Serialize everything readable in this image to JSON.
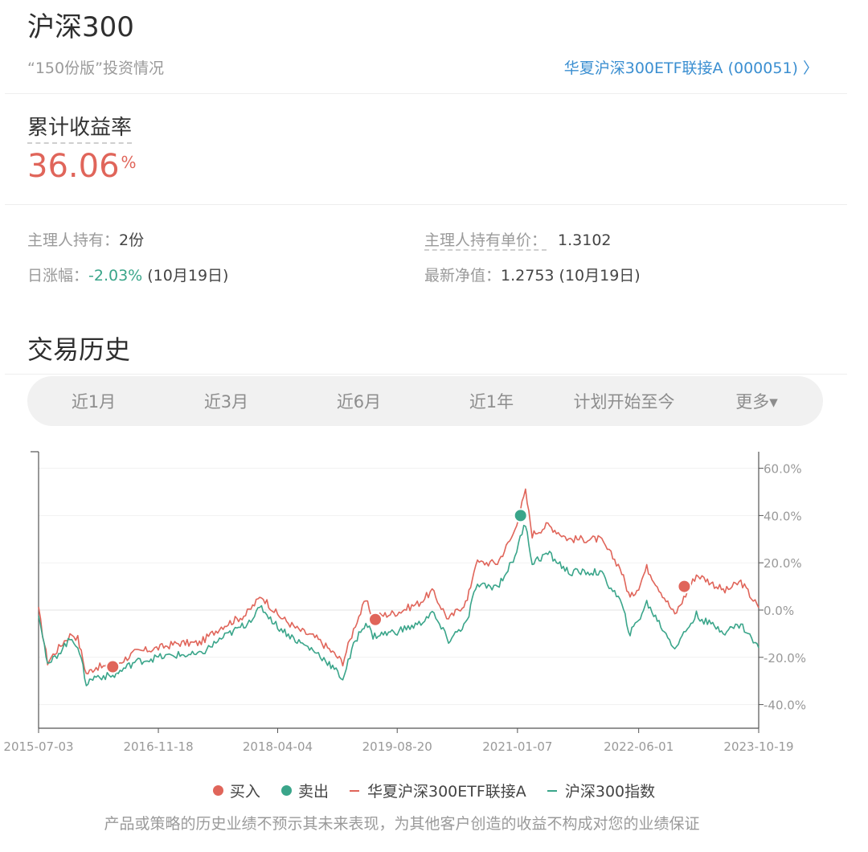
{
  "header": {
    "title": "沪深300",
    "subtitle": "“150份版”投资情况",
    "fund_link": "华夏沪深300ETF联接A (000051) 〉"
  },
  "summary": {
    "label": "累计收益率",
    "value": "36.06",
    "unit": "%"
  },
  "info": {
    "holdings_label": "主理人持有：",
    "holdings_value": "2份",
    "unit_price_label": "主理人持有单价：",
    "unit_price_value": "1.3102",
    "daily_change_label": "日涨幅：",
    "daily_change_value": "-2.03%",
    "daily_change_date": " (10月19日)",
    "nav_label": "最新净值：",
    "nav_value": "1.2753 (10月19日)"
  },
  "history": {
    "title": "交易历史",
    "tabs": [
      "近1月",
      "近3月",
      "近6月",
      "近1年",
      "计划开始至今",
      "更多▾"
    ]
  },
  "colors": {
    "fund": "#e0655a",
    "index": "#3aa58a",
    "buy": "#e0655a",
    "sell": "#3aa58a"
  },
  "chart_data": {
    "type": "line",
    "x_ticks": [
      "2015-07-03",
      "2016-11-18",
      "2018-04-04",
      "2019-08-20",
      "2021-01-07",
      "2022-06-01",
      "2023-10-19"
    ],
    "y_ticks": [
      "60.0%",
      "40.0%",
      "20.0%",
      "0.0%",
      "-20.0%",
      "-40.0%"
    ],
    "ylim": [
      -50,
      67
    ],
    "y_side": "right",
    "grid": true,
    "legend_position": "bottom",
    "series": [
      {
        "name": "华夏沪深300ETF联接A",
        "color": "#e0655a",
        "points": [
          [
            "2015-07-03",
            0
          ],
          [
            "2015-07-20",
            -10
          ],
          [
            "2015-08-10",
            -22
          ],
          [
            "2015-09-10",
            -18
          ],
          [
            "2015-10-20",
            -13
          ],
          [
            "2015-11-20",
            -10
          ],
          [
            "2015-12-15",
            -12
          ],
          [
            "2016-01-20",
            -27
          ],
          [
            "2016-03-01",
            -24
          ],
          [
            "2016-05-10",
            -24
          ],
          [
            "2016-08-10",
            -18
          ],
          [
            "2016-11-18",
            -16
          ],
          [
            "2017-02-10",
            -14
          ],
          [
            "2017-05-10",
            -14
          ],
          [
            "2017-08-10",
            -7
          ],
          [
            "2017-11-20",
            -2
          ],
          [
            "2018-01-26",
            6
          ],
          [
            "2018-04-04",
            -2
          ],
          [
            "2018-06-25",
            -8
          ],
          [
            "2018-09-15",
            -12
          ],
          [
            "2018-10-31",
            -16
          ],
          [
            "2019-01-03",
            -22
          ],
          [
            "2019-02-25",
            -6
          ],
          [
            "2019-04-10",
            4
          ],
          [
            "2019-05-10",
            -3
          ],
          [
            "2019-08-20",
            -1
          ],
          [
            "2019-11-20",
            3
          ],
          [
            "2020-01-14",
            8
          ],
          [
            "2020-03-23",
            -4
          ],
          [
            "2020-06-10",
            4
          ],
          [
            "2020-07-15",
            20
          ],
          [
            "2020-10-15",
            20
          ],
          [
            "2020-12-20",
            32
          ],
          [
            "2021-02-10",
            50
          ],
          [
            "2021-03-10",
            32
          ],
          [
            "2021-05-15",
            36
          ],
          [
            "2021-08-10",
            30
          ],
          [
            "2021-12-20",
            30
          ],
          [
            "2022-03-15",
            18
          ],
          [
            "2022-04-26",
            5
          ],
          [
            "2022-06-01",
            10
          ],
          [
            "2022-07-05",
            18
          ],
          [
            "2022-10-31",
            -2
          ],
          [
            "2023-01-30",
            15
          ],
          [
            "2023-03-10",
            13
          ],
          [
            "2023-05-30",
            8
          ],
          [
            "2023-08-05",
            12
          ],
          [
            "2023-10-19",
            1
          ]
        ]
      },
      {
        "name": "沪深300指数",
        "color": "#3aa58a",
        "points": [
          [
            "2015-07-03",
            -1
          ],
          [
            "2015-07-20",
            -10
          ],
          [
            "2015-08-10",
            -24
          ],
          [
            "2015-09-10",
            -20
          ],
          [
            "2015-10-20",
            -15
          ],
          [
            "2015-11-20",
            -12
          ],
          [
            "2015-12-15",
            -15
          ],
          [
            "2016-01-20",
            -31
          ],
          [
            "2016-03-01",
            -28
          ],
          [
            "2016-05-10",
            -28
          ],
          [
            "2016-08-10",
            -22
          ],
          [
            "2016-11-18",
            -20
          ],
          [
            "2017-02-10",
            -19
          ],
          [
            "2017-05-10",
            -19
          ],
          [
            "2017-08-10",
            -12
          ],
          [
            "2017-11-20",
            -6
          ],
          [
            "2018-01-26",
            1
          ],
          [
            "2018-04-04",
            -7
          ],
          [
            "2018-06-25",
            -13
          ],
          [
            "2018-09-15",
            -18
          ],
          [
            "2018-10-31",
            -22
          ],
          [
            "2019-01-03",
            -29
          ],
          [
            "2019-02-25",
            -13
          ],
          [
            "2019-04-10",
            -5
          ],
          [
            "2019-05-10",
            -11
          ],
          [
            "2019-08-20",
            -9
          ],
          [
            "2019-11-20",
            -6
          ],
          [
            "2020-01-14",
            -1
          ],
          [
            "2020-03-23",
            -13
          ],
          [
            "2020-06-10",
            -5
          ],
          [
            "2020-07-15",
            10
          ],
          [
            "2020-10-15",
            10
          ],
          [
            "2020-12-20",
            21
          ],
          [
            "2021-02-10",
            37
          ],
          [
            "2021-03-10",
            20
          ],
          [
            "2021-05-15",
            24
          ],
          [
            "2021-08-10",
            16
          ],
          [
            "2021-12-20",
            16
          ],
          [
            "2022-03-15",
            4
          ],
          [
            "2022-04-26",
            -10
          ],
          [
            "2022-06-01",
            -4
          ],
          [
            "2022-07-05",
            3
          ],
          [
            "2022-10-31",
            -16
          ],
          [
            "2023-01-30",
            -2
          ],
          [
            "2023-03-10",
            -5
          ],
          [
            "2023-05-30",
            -9
          ],
          [
            "2023-08-05",
            -6
          ],
          [
            "2023-10-19",
            -16
          ]
        ]
      }
    ],
    "markers": [
      {
        "type": "买入",
        "date": "2016-05-10",
        "value": -24
      },
      {
        "type": "买入",
        "date": "2019-05-20",
        "value": -4
      },
      {
        "type": "卖出",
        "date": "2021-01-20",
        "value": 40
      },
      {
        "type": "买入",
        "date": "2022-12-10",
        "value": 10
      }
    ],
    "legend": [
      "买入",
      "卖出",
      "华夏沪深300ETF联接A",
      "沪深300指数"
    ]
  },
  "disclaimer": "产品或策略的历史业绩不预示其未来表现，为其他客户创造的收益不构成对您的业绩保证"
}
